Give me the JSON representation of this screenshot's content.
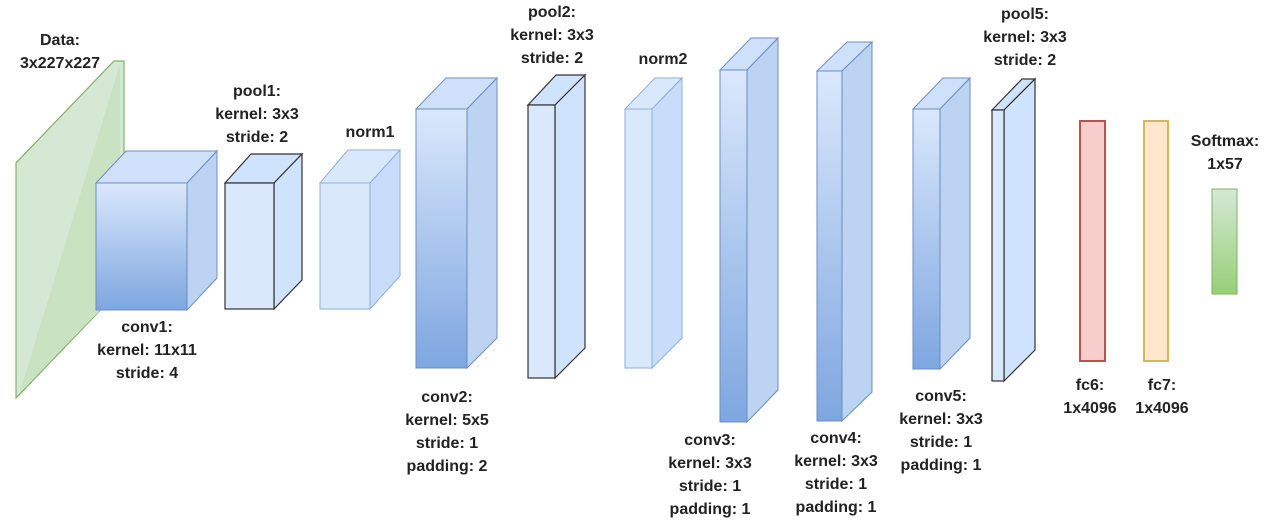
{
  "colors": {
    "blue_front_top": "#dae8fc",
    "blue_front_bottom": "#7ea6e0",
    "blue_side": "#bcd3f2",
    "blue_top": "#cfe0fb",
    "blue_stroke": "#6c8ebf",
    "light_front": "#dae8fc",
    "light_side": "#c9ddfa",
    "light_stroke": "#90aed8",
    "pool_front": "#dae8fc",
    "pool_side": "#cfe3fc",
    "pool_stroke": "#333333",
    "data_fill": "#d5e8d4",
    "data_side": "#b7dba4",
    "data_stroke": "#82b366",
    "fc6_fill": "#f8cecc",
    "fc6_stroke": "#b85450",
    "fc7_fill": "#ffe6cc",
    "fc7_stroke": "#d6b656",
    "softmax_top": "#d5e8d4",
    "softmax_bottom": "#97d077",
    "softmax_stroke": "#82b366"
  },
  "layers": [
    {
      "id": "data",
      "lines": [
        "Data:",
        "3x227x227"
      ]
    },
    {
      "id": "conv1",
      "lines": [
        "conv1:",
        "kernel: 11x11",
        "stride: 4"
      ]
    },
    {
      "id": "pool1",
      "lines": [
        "pool1:",
        "kernel: 3x3",
        "stride: 2"
      ]
    },
    {
      "id": "norm1",
      "lines": [
        "norm1"
      ]
    },
    {
      "id": "conv2",
      "lines": [
        "conv2:",
        "kernel: 5x5",
        "stride: 1",
        "padding: 2"
      ]
    },
    {
      "id": "pool2",
      "lines": [
        "pool2:",
        "kernel: 3x3",
        "stride: 2"
      ]
    },
    {
      "id": "norm2",
      "lines": [
        "norm2"
      ]
    },
    {
      "id": "conv3",
      "lines": [
        "conv3:",
        "kernel: 3x3",
        "stride: 1",
        "padding: 1"
      ]
    },
    {
      "id": "conv4",
      "lines": [
        "conv4:",
        "kernel: 3x3",
        "stride: 1",
        "padding: 1"
      ]
    },
    {
      "id": "conv5",
      "lines": [
        "conv5:",
        "kernel: 3x3",
        "stride: 1",
        "padding: 1"
      ]
    },
    {
      "id": "pool5",
      "lines": [
        "pool5:",
        "kernel: 3x3",
        "stride: 2"
      ]
    },
    {
      "id": "fc6",
      "lines": [
        "fc6:",
        "1x4096"
      ]
    },
    {
      "id": "fc7",
      "lines": [
        "fc7:",
        "1x4096"
      ]
    },
    {
      "id": "softmax",
      "lines": [
        "Softmax:",
        "1x57"
      ]
    }
  ]
}
